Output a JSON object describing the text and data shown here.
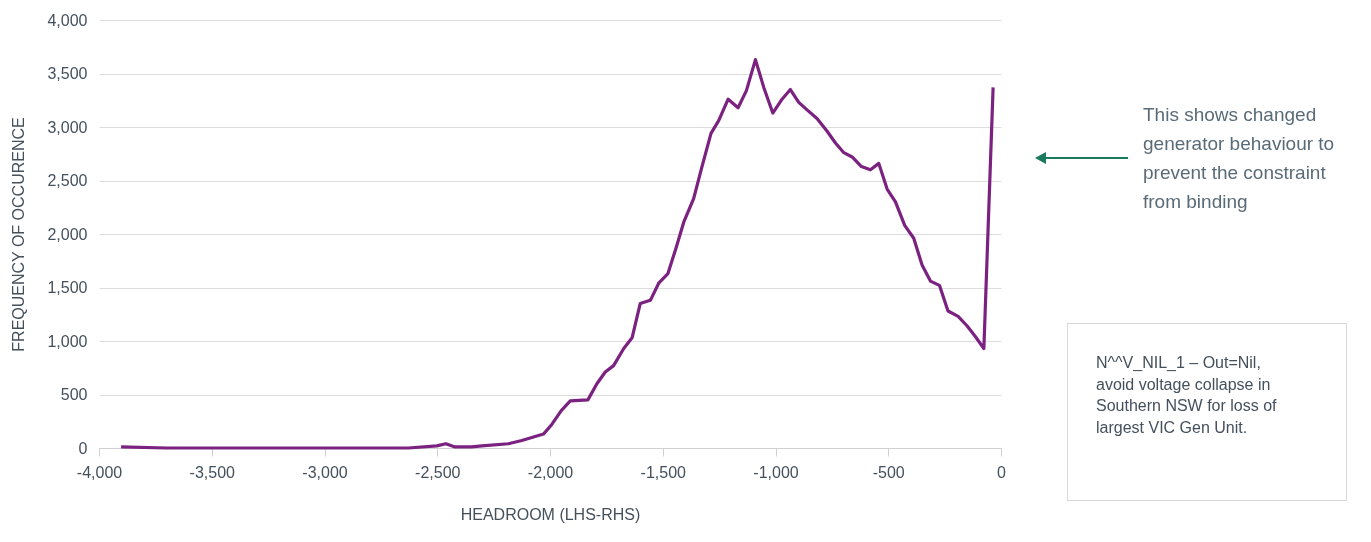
{
  "chart_data": {
    "type": "line",
    "xlabel": "HEADROOM (LHS-RHS)",
    "ylabel": "FREQUENCY OF OCCURENCE",
    "xlim": [
      -4000,
      0
    ],
    "xticks": [
      {
        "value": -4000,
        "label": "-4,000"
      },
      {
        "value": -3500,
        "label": "-3,500"
      },
      {
        "value": -3000,
        "label": "-3,000"
      },
      {
        "value": -2500,
        "label": "-2,500"
      },
      {
        "value": -2000,
        "label": "-2,000"
      },
      {
        "value": -1500,
        "label": "-1,500"
      },
      {
        "value": -1000,
        "label": "-1,000"
      },
      {
        "value": -500,
        "label": "-500"
      },
      0
    ],
    "ylim": [
      0,
      4000
    ],
    "yticks": [
      0,
      500,
      {
        "value": 1000,
        "label": "1,000"
      },
      {
        "value": 1500,
        "label": "1,500"
      },
      {
        "value": 2000,
        "label": "2,000"
      },
      {
        "value": 2500,
        "label": "2,500"
      },
      {
        "value": 3000,
        "label": "3,000"
      },
      {
        "value": 3500,
        "label": "3,500"
      },
      {
        "value": 4000,
        "label": "4,000"
      }
    ],
    "grid": "y",
    "legend": false,
    "marker": "none",
    "line_style": "solid",
    "x": [
      -3902,
      -3700,
      -3400,
      -3000,
      -2628,
      -2502,
      -2462,
      -2421,
      -2347,
      -2302,
      -2185,
      -2125,
      -2029,
      -1992,
      -1950,
      -1910,
      -1832,
      -1792,
      -1755,
      -1718,
      -1673,
      -1636,
      -1600,
      -1555,
      -1518,
      -1477,
      -1441,
      -1407,
      -1363,
      -1326,
      -1286,
      -1252,
      -1210,
      -1166,
      -1129,
      -1089,
      -1052,
      -1012,
      -971,
      -934,
      -897,
      -860,
      -816,
      -771,
      -734,
      -697,
      -660,
      -619,
      -579,
      -542,
      -505,
      -468,
      -427,
      -387,
      -350,
      -313,
      -273,
      -235,
      -190,
      -150,
      -113,
      -76,
      -35
    ],
    "series": [
      {
        "color": "#7b2180",
        "values": [
          10,
          0,
          0,
          0,
          0,
          20,
          40,
          10,
          10,
          20,
          40,
          70,
          130,
          220,
          350,
          440,
          450,
          600,
          710,
          770,
          930,
          1030,
          1350,
          1380,
          1540,
          1630,
          1870,
          2110,
          2330,
          2630,
          2940,
          3060,
          3260,
          3180,
          3340,
          3630,
          3370,
          3130,
          3260,
          3350,
          3230,
          3160,
          3080,
          2960,
          2850,
          2760,
          2720,
          2630,
          2600,
          2660,
          2420,
          2300,
          2080,
          1960,
          1710,
          1560,
          1520,
          1280,
          1230,
          1140,
          1040,
          930,
          3370
        ]
      }
    ],
    "annotations": [
      "This shows changed generator behaviour to prevent the constraint from binding",
      "N^^V_NIL_1 – Out=Nil, avoid voltage collapse in Southern NSW for loss of largest VIC Gen Unit."
    ]
  }
}
